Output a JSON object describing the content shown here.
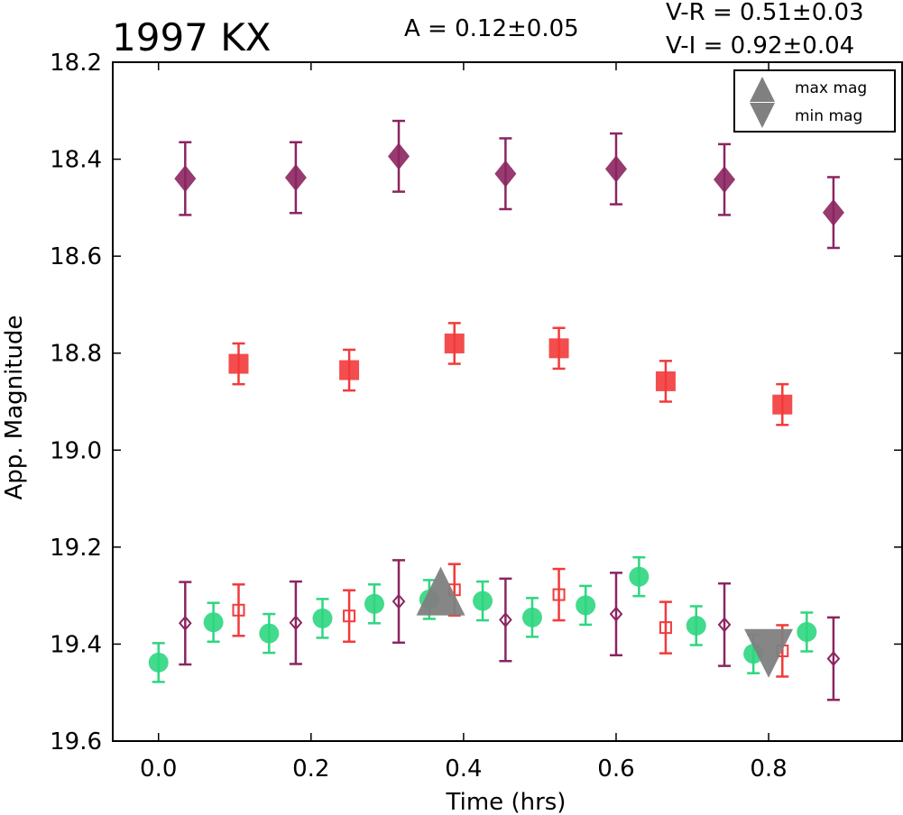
{
  "chart_data": {
    "type": "scatter",
    "title": "1997 KX",
    "xlabel": "Time (hrs)",
    "ylabel": "App. Magnitude",
    "xlim": [
      -0.06,
      0.975
    ],
    "ylim": [
      19.6,
      18.2
    ],
    "y_inverted": true,
    "grid": false,
    "x_ticks": [
      0.0,
      0.2,
      0.4,
      0.6,
      0.8
    ],
    "x_tick_labels": [
      "0.0",
      "0.2",
      "0.4",
      "0.6",
      "0.8"
    ],
    "y_ticks": [
      18.2,
      18.4,
      18.6,
      18.8,
      19.0,
      19.2,
      19.4,
      19.6
    ],
    "y_tick_labels": [
      "18.2",
      "18.4",
      "18.6",
      "18.8",
      "19.0",
      "19.2",
      "19.4",
      "19.6"
    ],
    "annotations": {
      "amplitude": "A  = 0.12±0.05",
      "v_r": "V-R = 0.51±0.03",
      "v_i": "V-I  = 0.92±0.04"
    },
    "legend": {
      "placement": "top-right",
      "entries": [
        {
          "label": "max mag",
          "marker": "triangle-up",
          "color": "#808080"
        },
        {
          "label": "min mag",
          "marker": "triangle-down",
          "color": "#808080"
        }
      ]
    },
    "series": [
      {
        "marker": "diamond-filled",
        "color": "#8b2560",
        "points": [
          {
            "x": 0.035,
            "y": 18.44,
            "err": 0.075
          },
          {
            "x": 0.18,
            "y": 18.438,
            "err": 0.073
          },
          {
            "x": 0.315,
            "y": 18.394,
            "err": 0.073
          },
          {
            "x": 0.455,
            "y": 18.43,
            "err": 0.073
          },
          {
            "x": 0.6,
            "y": 18.42,
            "err": 0.073
          },
          {
            "x": 0.742,
            "y": 18.442,
            "err": 0.073
          },
          {
            "x": 0.885,
            "y": 18.51,
            "err": 0.073
          }
        ]
      },
      {
        "marker": "square-filled",
        "color": "#f23a3a",
        "points": [
          {
            "x": 0.105,
            "y": 18.822,
            "err": 0.042
          },
          {
            "x": 0.25,
            "y": 18.835,
            "err": 0.042
          },
          {
            "x": 0.388,
            "y": 18.78,
            "err": 0.042
          },
          {
            "x": 0.525,
            "y": 18.79,
            "err": 0.042
          },
          {
            "x": 0.665,
            "y": 18.858,
            "err": 0.042
          },
          {
            "x": 0.818,
            "y": 18.906,
            "err": 0.042
          }
        ]
      },
      {
        "marker": "circle-filled",
        "color": "#2ed67f",
        "points": [
          {
            "x": 0.0,
            "y": 19.438,
            "err": 0.04
          },
          {
            "x": 0.072,
            "y": 19.355,
            "err": 0.04
          },
          {
            "x": 0.145,
            "y": 19.378,
            "err": 0.04
          },
          {
            "x": 0.215,
            "y": 19.347,
            "err": 0.04
          },
          {
            "x": 0.283,
            "y": 19.317,
            "err": 0.04
          },
          {
            "x": 0.355,
            "y": 19.308,
            "err": 0.04
          },
          {
            "x": 0.425,
            "y": 19.311,
            "err": 0.04
          },
          {
            "x": 0.49,
            "y": 19.345,
            "err": 0.04
          },
          {
            "x": 0.56,
            "y": 19.32,
            "err": 0.04
          },
          {
            "x": 0.63,
            "y": 19.261,
            "err": 0.04
          },
          {
            "x": 0.705,
            "y": 19.362,
            "err": 0.04
          },
          {
            "x": 0.78,
            "y": 19.42,
            "err": 0.04
          },
          {
            "x": 0.85,
            "y": 19.375,
            "err": 0.04
          }
        ]
      },
      {
        "marker": "square-open",
        "color": "#f23a3a",
        "points": [
          {
            "x": 0.105,
            "y": 19.33,
            "err": 0.053
          },
          {
            "x": 0.25,
            "y": 19.342,
            "err": 0.053
          },
          {
            "x": 0.388,
            "y": 19.288,
            "err": 0.053
          },
          {
            "x": 0.525,
            "y": 19.298,
            "err": 0.053
          },
          {
            "x": 0.665,
            "y": 19.366,
            "err": 0.053
          },
          {
            "x": 0.818,
            "y": 19.414,
            "err": 0.053
          }
        ]
      },
      {
        "marker": "diamond-open",
        "color": "#8b2560",
        "points": [
          {
            "x": 0.035,
            "y": 19.357,
            "err": 0.085
          },
          {
            "x": 0.18,
            "y": 19.356,
            "err": 0.085
          },
          {
            "x": 0.315,
            "y": 19.312,
            "err": 0.085
          },
          {
            "x": 0.455,
            "y": 19.35,
            "err": 0.085
          },
          {
            "x": 0.6,
            "y": 19.338,
            "err": 0.085
          },
          {
            "x": 0.742,
            "y": 19.36,
            "err": 0.085
          },
          {
            "x": 0.885,
            "y": 19.43,
            "err": 0.085
          }
        ]
      },
      {
        "marker": "triangle-up",
        "color": "#808080",
        "points": [
          {
            "x": 0.37,
            "y": 19.3
          }
        ]
      },
      {
        "marker": "triangle-down",
        "color": "#808080",
        "points": [
          {
            "x": 0.8,
            "y": 19.41
          }
        ]
      }
    ]
  }
}
